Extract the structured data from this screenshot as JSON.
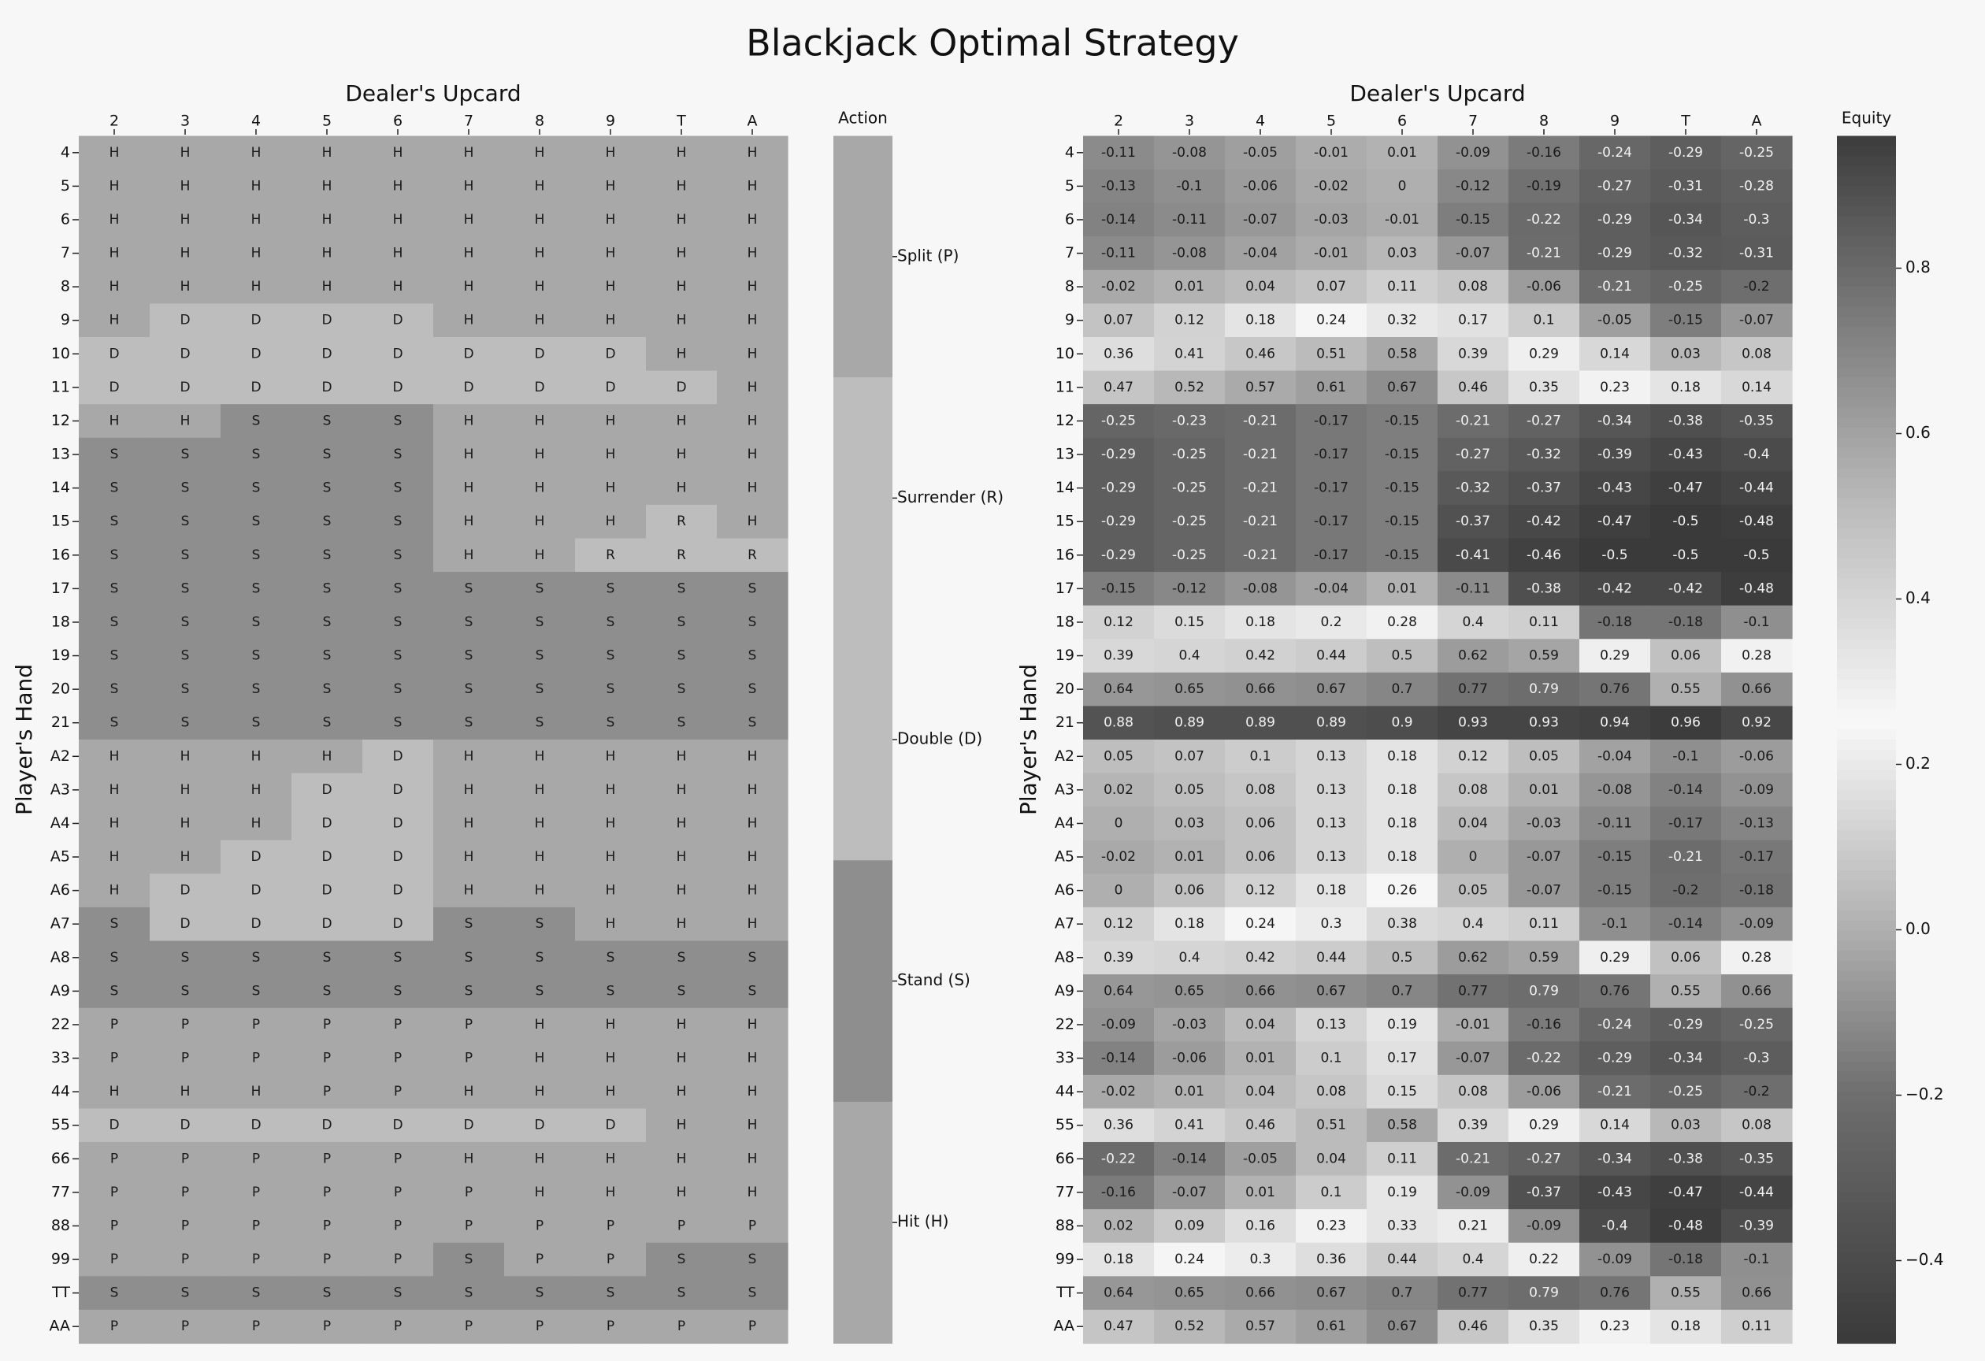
{
  "title": "Blackjack Optimal Strategy",
  "chart_data": [
    {
      "type": "heatmap",
      "name": "strategy",
      "xlabel": "Dealer's Upcard",
      "ylabel": "Player's Hand",
      "columns": [
        "2",
        "3",
        "4",
        "5",
        "6",
        "7",
        "8",
        "9",
        "T",
        "A"
      ],
      "rows": [
        "4",
        "5",
        "6",
        "7",
        "8",
        "9",
        "10",
        "11",
        "12",
        "13",
        "14",
        "15",
        "16",
        "17",
        "18",
        "19",
        "20",
        "21",
        "A2",
        "A3",
        "A4",
        "A5",
        "A6",
        "A7",
        "A8",
        "A9",
        "22",
        "33",
        "44",
        "55",
        "66",
        "77",
        "88",
        "99",
        "TT",
        "AA"
      ],
      "values": [
        [
          "H",
          "H",
          "H",
          "H",
          "H",
          "H",
          "H",
          "H",
          "H",
          "H"
        ],
        [
          "H",
          "H",
          "H",
          "H",
          "H",
          "H",
          "H",
          "H",
          "H",
          "H"
        ],
        [
          "H",
          "H",
          "H",
          "H",
          "H",
          "H",
          "H",
          "H",
          "H",
          "H"
        ],
        [
          "H",
          "H",
          "H",
          "H",
          "H",
          "H",
          "H",
          "H",
          "H",
          "H"
        ],
        [
          "H",
          "H",
          "H",
          "H",
          "H",
          "H",
          "H",
          "H",
          "H",
          "H"
        ],
        [
          "H",
          "D",
          "D",
          "D",
          "D",
          "H",
          "H",
          "H",
          "H",
          "H"
        ],
        [
          "D",
          "D",
          "D",
          "D",
          "D",
          "D",
          "D",
          "D",
          "H",
          "H"
        ],
        [
          "D",
          "D",
          "D",
          "D",
          "D",
          "D",
          "D",
          "D",
          "D",
          "H"
        ],
        [
          "H",
          "H",
          "S",
          "S",
          "S",
          "H",
          "H",
          "H",
          "H",
          "H"
        ],
        [
          "S",
          "S",
          "S",
          "S",
          "S",
          "H",
          "H",
          "H",
          "H",
          "H"
        ],
        [
          "S",
          "S",
          "S",
          "S",
          "S",
          "H",
          "H",
          "H",
          "H",
          "H"
        ],
        [
          "S",
          "S",
          "S",
          "S",
          "S",
          "H",
          "H",
          "H",
          "R",
          "H"
        ],
        [
          "S",
          "S",
          "S",
          "S",
          "S",
          "H",
          "H",
          "R",
          "R",
          "R"
        ],
        [
          "S",
          "S",
          "S",
          "S",
          "S",
          "S",
          "S",
          "S",
          "S",
          "S"
        ],
        [
          "S",
          "S",
          "S",
          "S",
          "S",
          "S",
          "S",
          "S",
          "S",
          "S"
        ],
        [
          "S",
          "S",
          "S",
          "S",
          "S",
          "S",
          "S",
          "S",
          "S",
          "S"
        ],
        [
          "S",
          "S",
          "S",
          "S",
          "S",
          "S",
          "S",
          "S",
          "S",
          "S"
        ],
        [
          "S",
          "S",
          "S",
          "S",
          "S",
          "S",
          "S",
          "S",
          "S",
          "S"
        ],
        [
          "H",
          "H",
          "H",
          "H",
          "D",
          "H",
          "H",
          "H",
          "H",
          "H"
        ],
        [
          "H",
          "H",
          "H",
          "D",
          "D",
          "H",
          "H",
          "H",
          "H",
          "H"
        ],
        [
          "H",
          "H",
          "H",
          "D",
          "D",
          "H",
          "H",
          "H",
          "H",
          "H"
        ],
        [
          "H",
          "H",
          "D",
          "D",
          "D",
          "H",
          "H",
          "H",
          "H",
          "H"
        ],
        [
          "H",
          "D",
          "D",
          "D",
          "D",
          "H",
          "H",
          "H",
          "H",
          "H"
        ],
        [
          "S",
          "D",
          "D",
          "D",
          "D",
          "S",
          "S",
          "H",
          "H",
          "H"
        ],
        [
          "S",
          "S",
          "S",
          "S",
          "S",
          "S",
          "S",
          "S",
          "S",
          "S"
        ],
        [
          "S",
          "S",
          "S",
          "S",
          "S",
          "S",
          "S",
          "S",
          "S",
          "S"
        ],
        [
          "P",
          "P",
          "P",
          "P",
          "P",
          "P",
          "H",
          "H",
          "H",
          "H"
        ],
        [
          "P",
          "P",
          "P",
          "P",
          "P",
          "P",
          "H",
          "H",
          "H",
          "H"
        ],
        [
          "H",
          "H",
          "H",
          "P",
          "P",
          "H",
          "H",
          "H",
          "H",
          "H"
        ],
        [
          "D",
          "D",
          "D",
          "D",
          "D",
          "D",
          "D",
          "D",
          "H",
          "H"
        ],
        [
          "P",
          "P",
          "P",
          "P",
          "P",
          "H",
          "H",
          "H",
          "H",
          "H"
        ],
        [
          "P",
          "P",
          "P",
          "P",
          "P",
          "P",
          "H",
          "H",
          "H",
          "H"
        ],
        [
          "P",
          "P",
          "P",
          "P",
          "P",
          "P",
          "P",
          "P",
          "P",
          "P"
        ],
        [
          "P",
          "P",
          "P",
          "P",
          "P",
          "S",
          "P",
          "P",
          "S",
          "S"
        ],
        [
          "S",
          "S",
          "S",
          "S",
          "S",
          "S",
          "S",
          "S",
          "S",
          "S"
        ],
        [
          "P",
          "P",
          "P",
          "P",
          "P",
          "P",
          "P",
          "P",
          "P",
          "P"
        ]
      ],
      "legend": {
        "title": "Action",
        "categories": [
          {
            "code": "P",
            "label": "Split (P)",
            "color": "#a8a8a8"
          },
          {
            "code": "R",
            "label": "Surrender (R)",
            "color": "#bdbdbd"
          },
          {
            "code": "D",
            "label": "Double (D)",
            "color": "#bdbdbd"
          },
          {
            "code": "S",
            "label": "Stand (S)",
            "color": "#8e8e8e"
          },
          {
            "code": "H",
            "label": "Hit (H)",
            "color": "#a8a8a8"
          }
        ]
      }
    },
    {
      "type": "heatmap",
      "name": "equity",
      "xlabel": "Dealer's Upcard",
      "ylabel": "Player's Hand",
      "columns": [
        "2",
        "3",
        "4",
        "5",
        "6",
        "7",
        "8",
        "9",
        "T",
        "A"
      ],
      "rows": [
        "4",
        "5",
        "6",
        "7",
        "8",
        "9",
        "10",
        "11",
        "12",
        "13",
        "14",
        "15",
        "16",
        "17",
        "18",
        "19",
        "20",
        "21",
        "A2",
        "A3",
        "A4",
        "A5",
        "A6",
        "A7",
        "A8",
        "A9",
        "22",
        "33",
        "44",
        "55",
        "66",
        "77",
        "88",
        "99",
        "TT",
        "AA"
      ],
      "values": [
        [
          -0.11,
          -0.08,
          -0.05,
          -0.01,
          0.01,
          -0.09,
          -0.16,
          -0.24,
          -0.29,
          -0.25
        ],
        [
          -0.13,
          -0.1,
          -0.06,
          -0.02,
          -0.0,
          -0.12,
          -0.19,
          -0.27,
          -0.31,
          -0.28
        ],
        [
          -0.14,
          -0.11,
          -0.07,
          -0.03,
          -0.01,
          -0.15,
          -0.22,
          -0.29,
          -0.34,
          -0.3
        ],
        [
          -0.11,
          -0.08,
          -0.04,
          -0.01,
          0.03,
          -0.07,
          -0.21,
          -0.29,
          -0.32,
          -0.31
        ],
        [
          -0.02,
          0.01,
          0.04,
          0.07,
          0.11,
          0.08,
          -0.06,
          -0.21,
          -0.25,
          -0.2
        ],
        [
          0.07,
          0.12,
          0.18,
          0.24,
          0.32,
          0.17,
          0.1,
          -0.05,
          -0.15,
          -0.07
        ],
        [
          0.36,
          0.41,
          0.46,
          0.51,
          0.58,
          0.39,
          0.29,
          0.14,
          0.03,
          0.08
        ],
        [
          0.47,
          0.52,
          0.57,
          0.61,
          0.67,
          0.46,
          0.35,
          0.23,
          0.18,
          0.14
        ],
        [
          -0.25,
          -0.23,
          -0.21,
          -0.17,
          -0.15,
          -0.21,
          -0.27,
          -0.34,
          -0.38,
          -0.35
        ],
        [
          -0.29,
          -0.25,
          -0.21,
          -0.17,
          -0.15,
          -0.27,
          -0.32,
          -0.39,
          -0.43,
          -0.4
        ],
        [
          -0.29,
          -0.25,
          -0.21,
          -0.17,
          -0.15,
          -0.32,
          -0.37,
          -0.43,
          -0.47,
          -0.44
        ],
        [
          -0.29,
          -0.25,
          -0.21,
          -0.17,
          -0.15,
          -0.37,
          -0.42,
          -0.47,
          -0.5,
          -0.48
        ],
        [
          -0.29,
          -0.25,
          -0.21,
          -0.17,
          -0.15,
          -0.41,
          -0.46,
          -0.5,
          -0.5,
          -0.5
        ],
        [
          -0.15,
          -0.12,
          -0.08,
          -0.04,
          0.01,
          -0.11,
          -0.38,
          -0.42,
          -0.42,
          -0.48
        ],
        [
          0.12,
          0.15,
          0.18,
          0.2,
          0.28,
          0.4,
          0.11,
          -0.18,
          -0.18,
          -0.1
        ],
        [
          0.39,
          0.4,
          0.42,
          0.44,
          0.5,
          0.62,
          0.59,
          0.29,
          0.06,
          0.28
        ],
        [
          0.64,
          0.65,
          0.66,
          0.67,
          0.7,
          0.77,
          0.79,
          0.76,
          0.55,
          0.66
        ],
        [
          0.88,
          0.89,
          0.89,
          0.89,
          0.9,
          0.93,
          0.93,
          0.94,
          0.96,
          0.92
        ],
        [
          0.05,
          0.07,
          0.1,
          0.13,
          0.18,
          0.12,
          0.05,
          -0.04,
          -0.1,
          -0.06
        ],
        [
          0.02,
          0.05,
          0.08,
          0.13,
          0.18,
          0.08,
          0.01,
          -0.08,
          -0.14,
          -0.09
        ],
        [
          -0.0,
          0.03,
          0.06,
          0.13,
          0.18,
          0.04,
          -0.03,
          -0.11,
          -0.17,
          -0.13
        ],
        [
          -0.02,
          0.01,
          0.06,
          0.13,
          0.18,
          -0.0,
          -0.07,
          -0.15,
          -0.21,
          -0.17
        ],
        [
          -0.0,
          0.06,
          0.12,
          0.18,
          0.26,
          0.05,
          -0.07,
          -0.15,
          -0.2,
          -0.18
        ],
        [
          0.12,
          0.18,
          0.24,
          0.3,
          0.38,
          0.4,
          0.11,
          -0.1,
          -0.14,
          -0.09
        ],
        [
          0.39,
          0.4,
          0.42,
          0.44,
          0.5,
          0.62,
          0.59,
          0.29,
          0.06,
          0.28
        ],
        [
          0.64,
          0.65,
          0.66,
          0.67,
          0.7,
          0.77,
          0.79,
          0.76,
          0.55,
          0.66
        ],
        [
          -0.09,
          -0.03,
          0.04,
          0.13,
          0.19,
          -0.01,
          -0.16,
          -0.24,
          -0.29,
          -0.25
        ],
        [
          -0.14,
          -0.06,
          0.01,
          0.1,
          0.17,
          -0.07,
          -0.22,
          -0.29,
          -0.34,
          -0.3
        ],
        [
          -0.02,
          0.01,
          0.04,
          0.08,
          0.15,
          0.08,
          -0.06,
          -0.21,
          -0.25,
          -0.2
        ],
        [
          0.36,
          0.41,
          0.46,
          0.51,
          0.58,
          0.39,
          0.29,
          0.14,
          0.03,
          0.08
        ],
        [
          -0.22,
          -0.14,
          -0.05,
          0.04,
          0.11,
          -0.21,
          -0.27,
          -0.34,
          -0.38,
          -0.35
        ],
        [
          -0.16,
          -0.07,
          0.01,
          0.1,
          0.19,
          -0.09,
          -0.37,
          -0.43,
          -0.47,
          -0.44
        ],
        [
          0.02,
          0.09,
          0.16,
          0.23,
          0.33,
          0.21,
          -0.09,
          -0.4,
          -0.48,
          -0.39
        ],
        [
          0.18,
          0.24,
          0.3,
          0.36,
          0.44,
          0.4,
          0.22,
          -0.09,
          -0.18,
          -0.1
        ],
        [
          0.64,
          0.65,
          0.66,
          0.67,
          0.7,
          0.77,
          0.79,
          0.76,
          0.55,
          0.66
        ],
        [
          0.47,
          0.52,
          0.57,
          0.61,
          0.67,
          0.46,
          0.35,
          0.23,
          0.18,
          0.11
        ]
      ],
      "colorbar": {
        "title": "Equity",
        "range": [
          -0.5,
          0.96
        ],
        "ticks": [
          0.8,
          0.6,
          0.4,
          0.2,
          0.0,
          -0.2,
          -0.4
        ],
        "tick_labels": [
          "0.8",
          "0.6",
          "0.4",
          "0.2",
          "0.0",
          "−0.2",
          "−0.4"
        ],
        "colormap": "diverging grey: dark at both ends, white near 0.25"
      }
    }
  ]
}
